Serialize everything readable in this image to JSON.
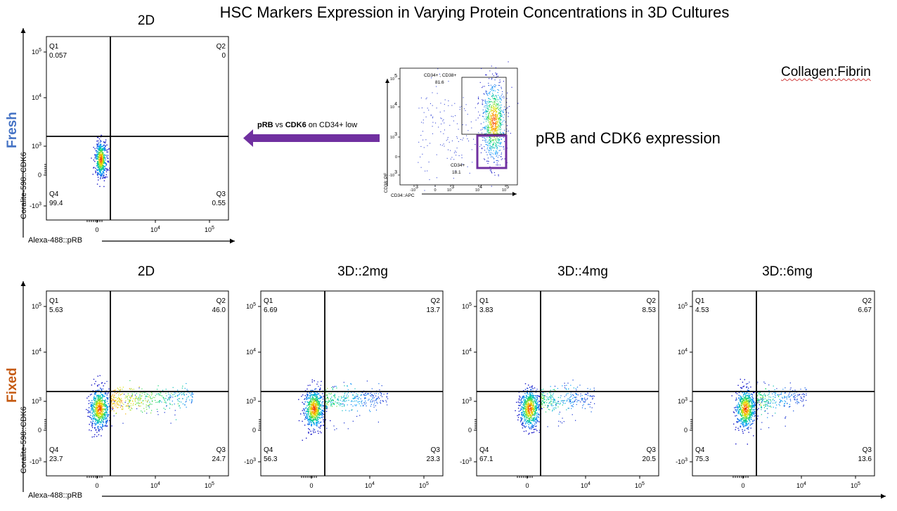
{
  "title": "HSC Markers Expression in Varying Protein Concentrations in 3D Cultures",
  "row_labels": {
    "fresh": "Fresh",
    "fixed": "Fixed"
  },
  "axis": {
    "x_label": "Alexa-488::pRB",
    "y_label": "Coralite-598::CDK6"
  },
  "annotation": {
    "gate_label": "pRB vs CDK6 on CD34+ low",
    "gate_label_parts": [
      "pRB",
      " vs ",
      "CDK6",
      " on CD34+ low"
    ],
    "expression_text": "pRB and CDK6 expression",
    "condition": "Collagen:Fibrin"
  },
  "colors": {
    "fresh_label": "#4472c4",
    "fixed_label": "#c55a11",
    "arrow": "#7030a0",
    "gate_box": "#7030a0"
  },
  "gating_plot": {
    "x_label": "CD34::APC",
    "y_label": "CD38::PE",
    "gates": [
      {
        "name": "CD34+ , CD38+",
        "value": "81.6"
      },
      {
        "name": "CD34+",
        "value": "18.1"
      }
    ]
  },
  "chart_data": [
    {
      "type": "scatter",
      "title": "2D",
      "row": "Fresh",
      "xlabel": "Alexa-488::pRB",
      "ylabel": "Coralite-598::CDK6",
      "x_ticks": [
        "0",
        "10^4",
        "10^5"
      ],
      "y_ticks": [
        "-10^3",
        "0",
        "10^3",
        "10^4",
        "10^5"
      ],
      "quadrants": {
        "Q1": "0.057",
        "Q2": "0",
        "Q3": "0.55",
        "Q4": "99.4"
      }
    },
    {
      "type": "scatter",
      "title": "2D",
      "row": "Fixed",
      "xlabel": "Alexa-488::pRB",
      "ylabel": "Coralite-598::CDK6",
      "x_ticks": [
        "0",
        "10^4",
        "10^5"
      ],
      "y_ticks": [
        "-10^3",
        "0",
        "10^3",
        "10^4",
        "10^5"
      ],
      "quadrants": {
        "Q1": "5.63",
        "Q2": "46.0",
        "Q3": "24.7",
        "Q4": "23.7"
      }
    },
    {
      "type": "scatter",
      "title": "3D::2mg",
      "row": "Fixed",
      "x_ticks": [
        "0",
        "10^4",
        "10^5"
      ],
      "y_ticks": [
        "-10^3",
        "0",
        "10^3",
        "10^4",
        "10^5"
      ],
      "quadrants": {
        "Q1": "6.69",
        "Q2": "13.7",
        "Q3": "23.3",
        "Q4": "56.3"
      }
    },
    {
      "type": "scatter",
      "title": "3D::4mg",
      "row": "Fixed",
      "x_ticks": [
        "0",
        "10^4",
        "10^5"
      ],
      "y_ticks": [
        "-10^3",
        "0",
        "10^3",
        "10^4",
        "10^5"
      ],
      "quadrants": {
        "Q1": "3.83",
        "Q2": "8.53",
        "Q3": "20.5",
        "Q4": "67.1"
      }
    },
    {
      "type": "scatter",
      "title": "3D::6mg",
      "row": "Fixed",
      "x_ticks": [
        "0",
        "10^4",
        "10^5"
      ],
      "y_ticks": [
        "-10^3",
        "0",
        "10^3",
        "10^4",
        "10^5"
      ],
      "quadrants": {
        "Q1": "4.53",
        "Q2": "6.67",
        "Q3": "13.6",
        "Q4": "75.3"
      }
    }
  ]
}
